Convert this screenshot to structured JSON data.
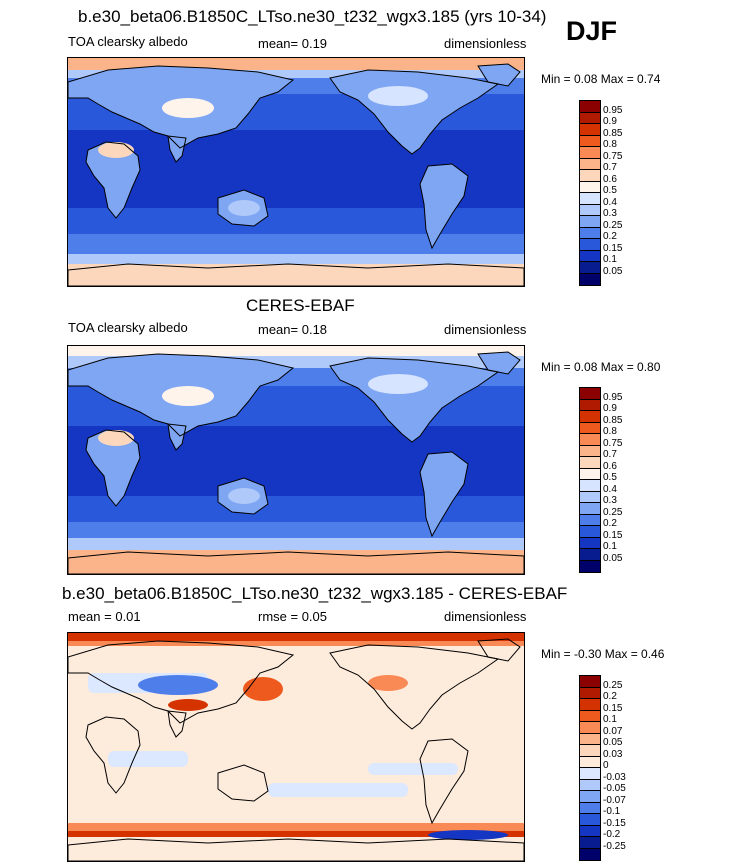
{
  "season": "DJF",
  "panels": [
    {
      "title": "b.e30_beta06.B1850C_LTso.ne30_t232_wgx3.185 (yrs 10-34)",
      "left_text": "TOA clearsky albedo",
      "mid_text": "mean=   0.19",
      "right_text": "dimensionless",
      "minmax": "Min =   0.08 Max =   0.74",
      "colorbar_labels": [
        "0.95",
        "0.9",
        "0.85",
        "0.8",
        "0.75",
        "0.7",
        "0.6",
        "0.5",
        "0.4",
        "0.3",
        "0.25",
        "0.2",
        "0.15",
        "0.1",
        "0.05"
      ],
      "colorbar_colors": [
        "#8b0000",
        "#b01a00",
        "#d43300",
        "#ee5a1e",
        "#f98a55",
        "#fbb48a",
        "#fcd7bb",
        "#fff4ec",
        "#d6e4ff",
        "#b0c9fb",
        "#7fa6f3",
        "#4d7eea",
        "#2a58db",
        "#1436c2",
        "#081c90",
        "#00006a"
      ],
      "map_kind": "albedo_model"
    },
    {
      "title": "CERES-EBAF",
      "left_text": "TOA clearsky albedo",
      "mid_text": "mean=   0.18",
      "right_text": "dimensionless",
      "minmax": "Min =   0.08 Max =   0.80",
      "colorbar_labels": [
        "0.95",
        "0.9",
        "0.85",
        "0.8",
        "0.75",
        "0.7",
        "0.6",
        "0.5",
        "0.4",
        "0.3",
        "0.25",
        "0.2",
        "0.15",
        "0.1",
        "0.05"
      ],
      "colorbar_colors": [
        "#8b0000",
        "#b01a00",
        "#d43300",
        "#ee5a1e",
        "#f98a55",
        "#fbb48a",
        "#fcd7bb",
        "#fff4ec",
        "#d6e4ff",
        "#b0c9fb",
        "#7fa6f3",
        "#4d7eea",
        "#2a58db",
        "#1436c2",
        "#081c90",
        "#00006a"
      ],
      "map_kind": "albedo_obs"
    },
    {
      "title": "b.e30_beta06.B1850C_LTso.ne30_t232_wgx3.185 - CERES-EBAF",
      "left_text": "mean =   0.01",
      "mid_text": "rmse =   0.05",
      "right_text": "dimensionless",
      "minmax": "Min =  -0.30 Max =   0.46",
      "colorbar_labels": [
        "0.25",
        "0.2",
        "0.15",
        "0.1",
        "0.07",
        "0.05",
        "0.03",
        "0",
        "-0.03",
        "-0.05",
        "-0.07",
        "-0.1",
        "-0.15",
        "-0.2",
        "-0.25"
      ],
      "colorbar_colors": [
        "#8b0000",
        "#b01a00",
        "#d43300",
        "#ee5a1e",
        "#f98a55",
        "#fbb48a",
        "#fcd7bb",
        "#fdebdc",
        "#dce8ff",
        "#b0c9fb",
        "#7fa6f3",
        "#4d7eea",
        "#2a58db",
        "#1436c2",
        "#081c90",
        "#00006a"
      ],
      "map_kind": "difference"
    }
  ]
}
